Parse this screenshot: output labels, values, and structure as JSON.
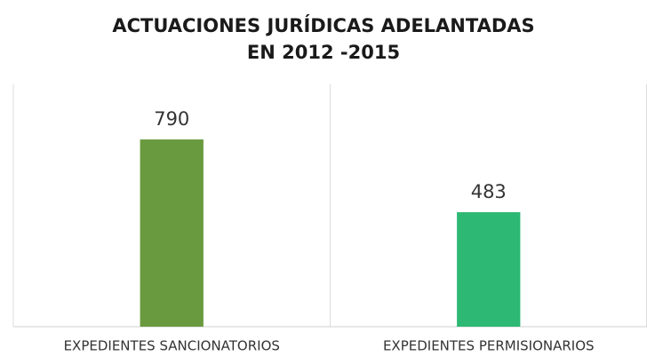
{
  "chart_data": {
    "type": "bar",
    "title": "ACTUACIONES JURÍDICAS ADELANTADAS EN 2012 -2015",
    "categories": [
      "EXPEDIENTES SANCIONATORIOS",
      "EXPEDIENTES PERMISIONARIOS"
    ],
    "values": [
      790,
      483
    ],
    "colors": [
      "#6a9a3f",
      "#2db874"
    ],
    "ylim": [
      0,
      1000
    ]
  }
}
